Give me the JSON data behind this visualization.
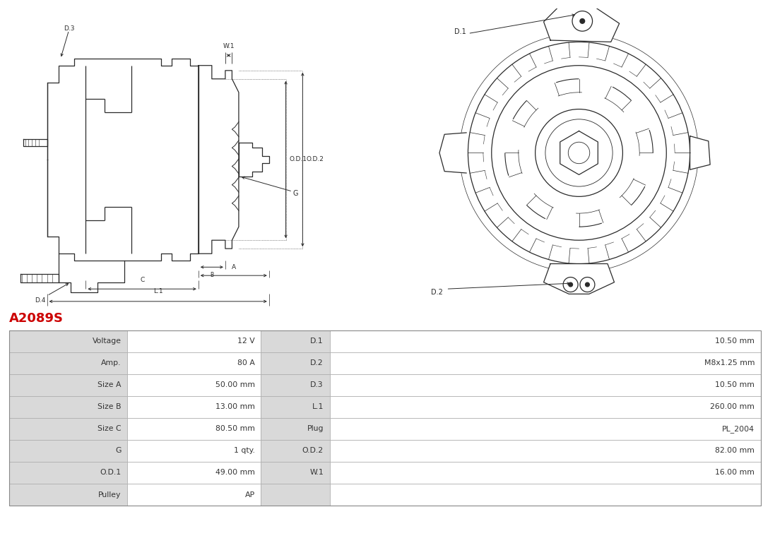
{
  "title": "A2089S",
  "title_color": "#cc0000",
  "bg_color": "#ffffff",
  "table_rows": [
    [
      "Voltage",
      "12 V",
      "D.1",
      "10.50 mm"
    ],
    [
      "Amp.",
      "80 A",
      "D.2",
      "M8x1.25 mm"
    ],
    [
      "Size A",
      "50.00 mm",
      "D.3",
      "10.50 mm"
    ],
    [
      "Size B",
      "13.00 mm",
      "L.1",
      "260.00 mm"
    ],
    [
      "Size C",
      "80.50 mm",
      "Plug",
      "PL_2004"
    ],
    [
      "G",
      "1 qty.",
      "O.D.2",
      "82.00 mm"
    ],
    [
      "O.D.1",
      "49.00 mm",
      "W.1",
      "16.00 mm"
    ],
    [
      "Pulley",
      "AP",
      "",
      ""
    ]
  ],
  "line_color": "#2a2a2a",
  "dim_color": "#2a2a2a",
  "grey_bg": "#d9d9d9",
  "white_bg": "#ffffff",
  "border_color": "#aaaaaa"
}
